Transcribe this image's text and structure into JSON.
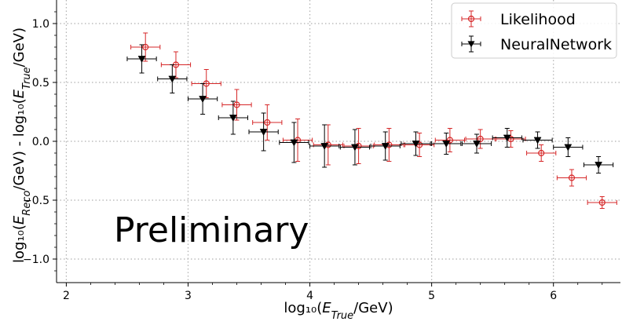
{
  "chart_data": {
    "type": "scatter",
    "xlabel": "log₁₀(E_True/GeV)",
    "ylabel": "log₁₀(E_Reco/GeV) - log₁₀(E_True/GeV)",
    "annotation": "Preliminary",
    "xlim": [
      1.92,
      6.55
    ],
    "ylim": [
      -1.2,
      1.2
    ],
    "x_ticks": [
      2,
      3,
      4,
      5,
      6
    ],
    "x_tick_labels": [
      "2",
      "3",
      "4",
      "5",
      "6"
    ],
    "y_ticks": [
      -1.0,
      -0.5,
      0.0,
      0.5,
      1.0
    ],
    "y_tick_labels": [
      "−1.0",
      "−0.5",
      "0.0",
      "0.5",
      "1.0"
    ],
    "grid": true,
    "legend_position": "top-right",
    "series": [
      {
        "name": "Likelihood",
        "color": "#d62728",
        "marker": "open-circle",
        "points": [
          {
            "x": 2.65,
            "y": 0.8,
            "xerr": 0.12,
            "yerr": 0.12
          },
          {
            "x": 2.9,
            "y": 0.65,
            "xerr": 0.12,
            "yerr": 0.11
          },
          {
            "x": 3.15,
            "y": 0.49,
            "xerr": 0.12,
            "yerr": 0.12
          },
          {
            "x": 3.4,
            "y": 0.31,
            "xerr": 0.12,
            "yerr": 0.13
          },
          {
            "x": 3.65,
            "y": 0.16,
            "xerr": 0.12,
            "yerr": 0.15
          },
          {
            "x": 3.9,
            "y": 0.01,
            "xerr": 0.12,
            "yerr": 0.18
          },
          {
            "x": 4.15,
            "y": -0.03,
            "xerr": 0.12,
            "yerr": 0.17
          },
          {
            "x": 4.4,
            "y": -0.04,
            "xerr": 0.12,
            "yerr": 0.15
          },
          {
            "x": 4.65,
            "y": -0.03,
            "xerr": 0.12,
            "yerr": 0.14
          },
          {
            "x": 4.9,
            "y": -0.03,
            "xerr": 0.12,
            "yerr": 0.1
          },
          {
            "x": 5.15,
            "y": 0.01,
            "xerr": 0.12,
            "yerr": 0.1
          },
          {
            "x": 5.4,
            "y": 0.02,
            "xerr": 0.12,
            "yerr": 0.08
          },
          {
            "x": 5.65,
            "y": 0.02,
            "xerr": 0.12,
            "yerr": 0.07
          },
          {
            "x": 5.9,
            "y": -0.1,
            "xerr": 0.12,
            "yerr": 0.07
          },
          {
            "x": 6.15,
            "y": -0.31,
            "xerr": 0.12,
            "yerr": 0.07
          },
          {
            "x": 6.4,
            "y": -0.52,
            "xerr": 0.12,
            "yerr": 0.05
          }
        ]
      },
      {
        "name": "NeuralNetwork",
        "color": "#000000",
        "marker": "filled-triangle-down",
        "points": [
          {
            "x": 2.62,
            "y": 0.7,
            "xerr": 0.12,
            "yerr": 0.12
          },
          {
            "x": 2.87,
            "y": 0.53,
            "xerr": 0.12,
            "yerr": 0.12
          },
          {
            "x": 3.12,
            "y": 0.36,
            "xerr": 0.12,
            "yerr": 0.13
          },
          {
            "x": 3.37,
            "y": 0.2,
            "xerr": 0.12,
            "yerr": 0.14
          },
          {
            "x": 3.62,
            "y": 0.08,
            "xerr": 0.12,
            "yerr": 0.16
          },
          {
            "x": 3.87,
            "y": -0.01,
            "xerr": 0.12,
            "yerr": 0.17
          },
          {
            "x": 4.12,
            "y": -0.04,
            "xerr": 0.12,
            "yerr": 0.18
          },
          {
            "x": 4.37,
            "y": -0.05,
            "xerr": 0.12,
            "yerr": 0.15
          },
          {
            "x": 4.62,
            "y": -0.04,
            "xerr": 0.12,
            "yerr": 0.12
          },
          {
            "x": 4.87,
            "y": -0.02,
            "xerr": 0.12,
            "yerr": 0.1
          },
          {
            "x": 5.12,
            "y": -0.02,
            "xerr": 0.12,
            "yerr": 0.09
          },
          {
            "x": 5.37,
            "y": -0.02,
            "xerr": 0.12,
            "yerr": 0.08
          },
          {
            "x": 5.62,
            "y": 0.03,
            "xerr": 0.12,
            "yerr": 0.08
          },
          {
            "x": 5.87,
            "y": 0.01,
            "xerr": 0.12,
            "yerr": 0.07
          },
          {
            "x": 6.12,
            "y": -0.05,
            "xerr": 0.12,
            "yerr": 0.08
          },
          {
            "x": 6.37,
            "y": -0.2,
            "xerr": 0.12,
            "yerr": 0.07
          }
        ]
      }
    ]
  }
}
